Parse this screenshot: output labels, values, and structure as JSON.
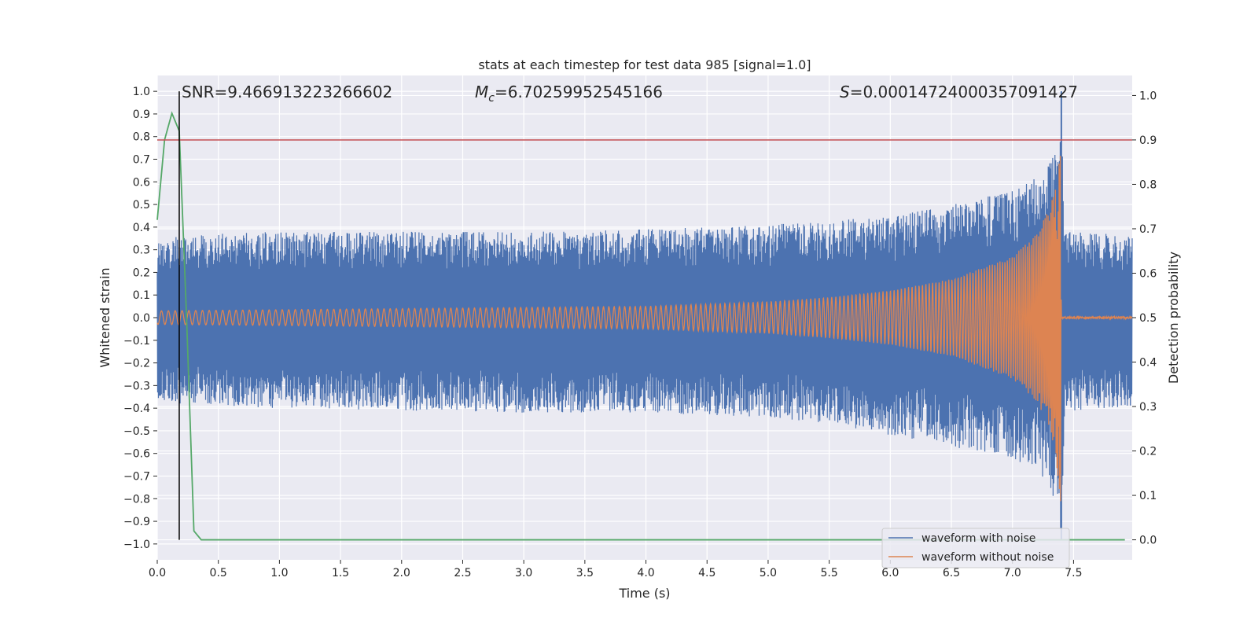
{
  "chart_data": {
    "type": "line",
    "title": "stats at each timestep for test data 985 [signal=1.0]",
    "xlabel": "Time (s)",
    "ylabel": "Whitened strain",
    "y2label": "Detection probability",
    "xlim": [
      0.0,
      7.98
    ],
    "ylim": [
      -1.07,
      1.07
    ],
    "y2lim": [
      -0.045,
      1.045
    ],
    "x_ticks": [
      0.0,
      0.5,
      1.0,
      1.5,
      2.0,
      2.5,
      3.0,
      3.5,
      4.0,
      4.5,
      5.0,
      5.5,
      6.0,
      6.5,
      7.0,
      7.5
    ],
    "x_tick_labels": [
      "0.0",
      "0.5",
      "1.0",
      "1.5",
      "2.0",
      "2.5",
      "3.0",
      "3.5",
      "4.0",
      "4.5",
      "5.0",
      "5.5",
      "6.0",
      "6.5",
      "7.0",
      "7.5"
    ],
    "y_ticks": [
      1.0,
      0.9,
      0.8,
      0.7,
      0.6,
      0.5,
      0.4,
      0.3,
      0.2,
      0.1,
      0.0,
      -0.1,
      -0.2,
      -0.3,
      -0.4,
      -0.5,
      -0.6,
      -0.7,
      -0.8,
      -0.9,
      -1.0
    ],
    "y_tick_labels": [
      "1.0",
      "0.9",
      "0.8",
      "0.7",
      "0.6",
      "0.5",
      "0.4",
      "0.3",
      "0.2",
      "0.1",
      "0.0",
      "−0.1",
      "−0.2",
      "−0.3",
      "−0.4",
      "−0.5",
      "−0.6",
      "−0.7",
      "−0.8",
      "−0.9",
      "−1.0"
    ],
    "y2_ticks": [
      1.0,
      0.9,
      0.8,
      0.7,
      0.6,
      0.5,
      0.4,
      0.3,
      0.2,
      0.1,
      0.0
    ],
    "y2_tick_labels": [
      "1.0",
      "0.9",
      "0.8",
      "0.7",
      "0.6",
      "0.5",
      "0.4",
      "0.3",
      "0.2",
      "0.1",
      "0.0"
    ],
    "grid": true,
    "legend_position": "lower-right",
    "annotations": {
      "snr": "SNR=9.466913223266602",
      "mc_symbol": "M",
      "mc_sub": "c",
      "mc_value": "=6.70259952545166",
      "s_symbol": "S",
      "s_value": "=0.00014724000357091427"
    },
    "threshold": {
      "axis": "right",
      "value": 0.9,
      "color": "#c44e52"
    },
    "marker_line": {
      "x": 0.18,
      "color": "#000000"
    },
    "merger_time": 7.4,
    "series": [
      {
        "name": "waveform with noise",
        "color": "#4c72b0",
        "axis": "left",
        "envelope": {
          "x": [
            0.0,
            0.5,
            1.0,
            2.0,
            3.0,
            4.0,
            5.0,
            5.5,
            6.0,
            6.5,
            7.0,
            7.2,
            7.3,
            7.37,
            7.4,
            7.43,
            7.98
          ],
          "upper": [
            0.35,
            0.37,
            0.38,
            0.38,
            0.38,
            0.39,
            0.41,
            0.43,
            0.45,
            0.5,
            0.56,
            0.62,
            0.68,
            0.78,
            1.0,
            0.38,
            0.37
          ],
          "lower": [
            -0.38,
            -0.39,
            -0.4,
            -0.41,
            -0.42,
            -0.42,
            -0.44,
            -0.47,
            -0.52,
            -0.57,
            -0.62,
            -0.68,
            -0.74,
            -0.85,
            -0.98,
            -0.42,
            -0.39
          ]
        }
      },
      {
        "name": "waveform without noise",
        "color": "#dd8452",
        "axis": "left",
        "envelope": {
          "x": [
            0.0,
            1.0,
            2.0,
            3.0,
            4.0,
            5.0,
            5.5,
            6.0,
            6.5,
            7.0,
            7.2,
            7.3,
            7.35,
            7.38,
            7.4,
            7.42,
            7.98
          ],
          "upper": [
            0.03,
            0.035,
            0.04,
            0.045,
            0.05,
            0.07,
            0.09,
            0.12,
            0.17,
            0.27,
            0.37,
            0.48,
            0.58,
            0.7,
            0.8,
            0.01,
            0.005
          ],
          "lower": [
            -0.03,
            -0.035,
            -0.04,
            -0.045,
            -0.05,
            -0.07,
            -0.09,
            -0.12,
            -0.17,
            -0.27,
            -0.37,
            -0.48,
            -0.6,
            -0.74,
            -0.88,
            -0.01,
            -0.005
          ]
        }
      },
      {
        "name": "detection probability",
        "color": "#55a868",
        "axis": "right",
        "x": [
          0.0,
          0.06,
          0.12,
          0.18,
          0.24,
          0.3,
          0.36,
          0.42,
          1.0,
          2.0,
          3.0,
          4.0,
          5.0,
          6.0,
          7.0,
          7.92
        ],
        "values": [
          0.72,
          0.9,
          0.96,
          0.92,
          0.5,
          0.02,
          0.0,
          0.0,
          0.0,
          0.0,
          0.0,
          0.0,
          0.0,
          0.0,
          0.0,
          0.0
        ]
      }
    ]
  }
}
